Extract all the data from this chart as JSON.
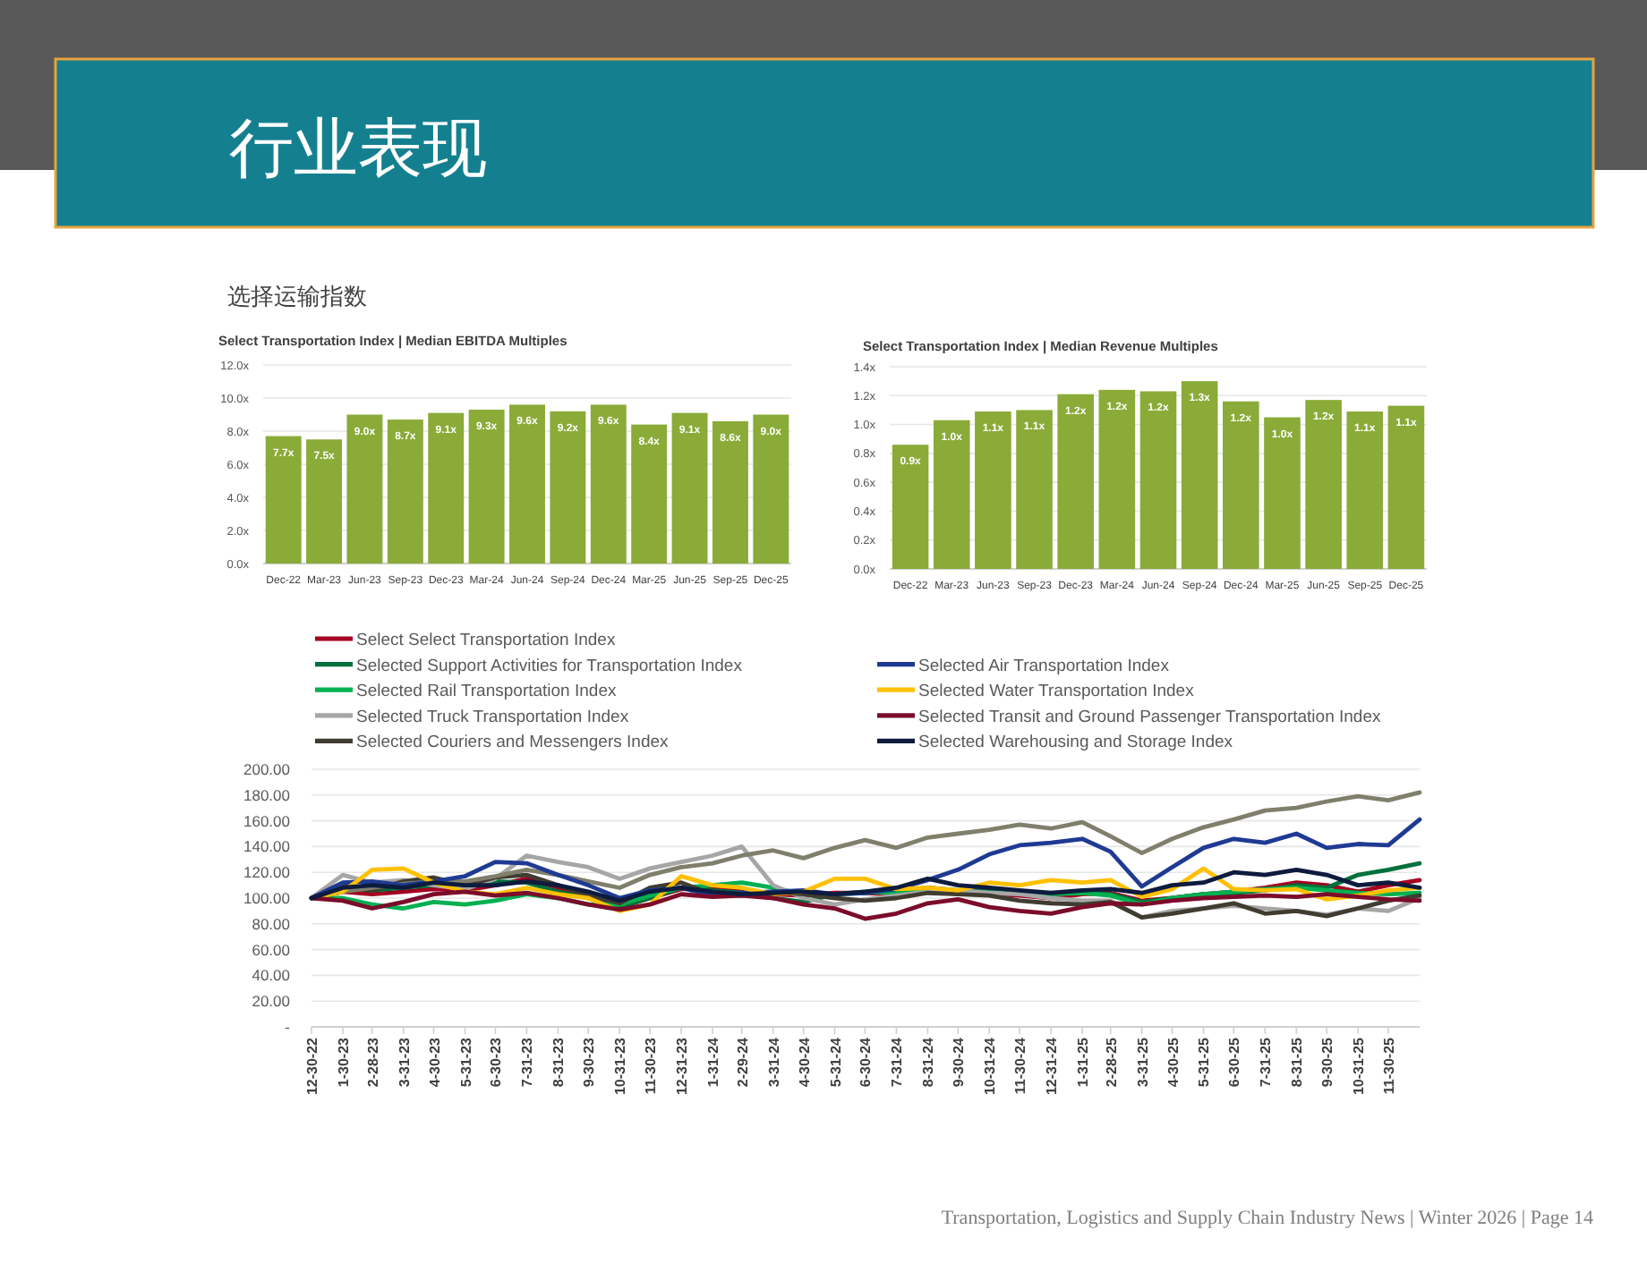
{
  "chart_data": [
    {
      "type": "other",
      "title": "行业表现",
      "subtitle": "选择运输指数",
      "annotations": [
        "Transportation, Logistics and Supply Chain Industry News | Winter 2026 | Page 14"
      ]
    },
    {
      "type": "bar",
      "title": "Select Transportation Index | Median EBITDA Multiples",
      "categories": [
        "Dec-22",
        "Mar-23",
        "Jun-23",
        "Sep-23",
        "Dec-23",
        "Mar-24",
        "Jun-24",
        "Sep-24",
        "Dec-24",
        "Mar-25",
        "Jun-25",
        "Sep-25",
        "Dec-25"
      ],
      "values": [
        7.7,
        7.5,
        9.0,
        8.7,
        9.1,
        9.3,
        9.6,
        9.2,
        9.6,
        8.4,
        9.1,
        8.6,
        9.0
      ],
      "value_labels": [
        "7.7x",
        "7.5x",
        "9.0x",
        "8.7x",
        "9.1x",
        "9.3x",
        "9.6x",
        "9.2x",
        "9.6x",
        "8.4x",
        "9.1x",
        "8.6x",
        "9.0x"
      ],
      "color": "#8aab38",
      "ylim": [
        0,
        12
      ],
      "yticks": [
        {
          "value": 0,
          "label": "0.0x"
        },
        {
          "value": 2,
          "label": "2.0x"
        },
        {
          "value": 4,
          "label": "4.0x"
        },
        {
          "value": 6,
          "label": "6.0x"
        },
        {
          "value": 8,
          "label": "8.0x"
        },
        {
          "value": 10,
          "label": "10.0x"
        },
        {
          "value": 12,
          "label": "12.0x"
        }
      ],
      "grid": "y"
    },
    {
      "type": "bar",
      "title": "Select Transportation Index | Median Revenue Multiples",
      "categories": [
        "Dec-22",
        "Mar-23",
        "Jun-23",
        "Sep-23",
        "Dec-23",
        "Mar-24",
        "Jun-24",
        "Sep-24",
        "Dec-24",
        "Mar-25",
        "Jun-25",
        "Sep-25",
        "Dec-25"
      ],
      "values": [
        0.86,
        1.03,
        1.09,
        1.1,
        1.21,
        1.24,
        1.23,
        1.3,
        1.16,
        1.05,
        1.17,
        1.09,
        1.13
      ],
      "value_labels": [
        "0.9x",
        "1.0x",
        "1.1x",
        "1.1x",
        "1.2x",
        "1.2x",
        "1.2x",
        "1.3x",
        "1.2x",
        "1.0x",
        "1.2x",
        "1.1x",
        "1.1x"
      ],
      "color": "#8aab38",
      "ylim": [
        0,
        1.4
      ],
      "yticks": [
        {
          "value": 0,
          "label": "0.0x"
        },
        {
          "value": 0.2,
          "label": "0.2x"
        },
        {
          "value": 0.4,
          "label": "0.4x"
        },
        {
          "value": 0.6,
          "label": "0.6x"
        },
        {
          "value": 0.8,
          "label": "0.8x"
        },
        {
          "value": 1.0,
          "label": "1.0x"
        },
        {
          "value": 1.2,
          "label": "1.2x"
        },
        {
          "value": 1.4,
          "label": "1.4x"
        }
      ],
      "grid": "y"
    },
    {
      "type": "line",
      "x": [
        "2022-12-30",
        "2023-01-30",
        "2023-02-28",
        "2023-03-31",
        "2023-04-30",
        "2023-05-31",
        "2023-06-30",
        "2023-07-31",
        "2023-08-31",
        "2023-09-30",
        "2023-10-31",
        "2023-11-30",
        "2023-12-31",
        "2024-01-31",
        "2024-02-29",
        "2024-03-31",
        "2024-04-30",
        "2024-05-31",
        "2024-06-30",
        "2024-07-31",
        "2024-08-31",
        "2024-09-30",
        "2024-10-31",
        "2024-11-30",
        "2024-12-31",
        "2025-01-31",
        "2025-02-28",
        "2025-03-31",
        "2025-04-30",
        "2025-05-31",
        "2025-06-30",
        "2025-07-31",
        "2025-08-31",
        "2025-09-30",
        "2025-10-31",
        "2025-11-30",
        "2025-12-31"
      ],
      "xlim": [
        "2022-12-30",
        "2025-12-31"
      ],
      "xticks": [
        {
          "value": "2022-12-30",
          "label": "12-30-22"
        },
        {
          "value": "2023-01-30",
          "label": "1-30-23"
        },
        {
          "value": "2023-02-28",
          "label": "2-28-23"
        },
        {
          "value": "2023-03-31",
          "label": "3-31-23"
        },
        {
          "value": "2023-04-30",
          "label": "4-30-23"
        },
        {
          "value": "2023-05-31",
          "label": "5-31-23"
        },
        {
          "value": "2023-06-30",
          "label": "6-30-23"
        },
        {
          "value": "2023-07-31",
          "label": "7-31-23"
        },
        {
          "value": "2023-08-31",
          "label": "8-31-23"
        },
        {
          "value": "2023-09-30",
          "label": "9-30-23"
        },
        {
          "value": "2023-10-31",
          "label": "10-31-23"
        },
        {
          "value": "2023-11-30",
          "label": "11-30-23"
        },
        {
          "value": "2023-12-31",
          "label": "12-31-23"
        },
        {
          "value": "2024-01-31",
          "label": "1-31-24"
        },
        {
          "value": "2024-02-29",
          "label": "2-29-24"
        },
        {
          "value": "2024-03-31",
          "label": "3-31-24"
        },
        {
          "value": "2024-04-30",
          "label": "4-30-24"
        },
        {
          "value": "2024-05-31",
          "label": "5-31-24"
        },
        {
          "value": "2024-06-30",
          "label": "6-30-24"
        },
        {
          "value": "2024-07-31",
          "label": "7-31-24"
        },
        {
          "value": "2024-08-31",
          "label": "8-31-24"
        },
        {
          "value": "2024-09-30",
          "label": "9-30-24"
        },
        {
          "value": "2024-10-31",
          "label": "10-31-24"
        },
        {
          "value": "2024-11-30",
          "label": "11-30-24"
        },
        {
          "value": "2024-12-31",
          "label": "12-31-24"
        },
        {
          "value": "2025-01-31",
          "label": "1-31-25"
        },
        {
          "value": "2025-02-28",
          "label": "2-28-25"
        },
        {
          "value": "2025-03-31",
          "label": "3-31-25"
        },
        {
          "value": "2025-04-30",
          "label": "4-30-25"
        },
        {
          "value": "2025-05-31",
          "label": "5-31-25"
        },
        {
          "value": "2025-06-30",
          "label": "6-30-25"
        },
        {
          "value": "2025-07-31",
          "label": "7-31-25"
        },
        {
          "value": "2025-08-31",
          "label": "8-31-25"
        },
        {
          "value": "2025-09-30",
          "label": "9-30-25"
        },
        {
          "value": "2025-10-31",
          "label": "10-31-25"
        },
        {
          "value": "2025-11-30",
          "label": "11-30-25"
        }
      ],
      "ylim": [
        0,
        200
      ],
      "yticks": [
        {
          "value": 0,
          "label": "-"
        },
        {
          "value": 20,
          "label": "20.00"
        },
        {
          "value": 40,
          "label": "40.00"
        },
        {
          "value": 60,
          "label": "60.00"
        },
        {
          "value": 80,
          "label": "80.00"
        },
        {
          "value": 100,
          "label": "100.00"
        },
        {
          "value": 120,
          "label": "120.00"
        },
        {
          "value": 140,
          "label": "140.00"
        },
        {
          "value": 160,
          "label": "160.00"
        },
        {
          "value": 180,
          "label": "180.00"
        },
        {
          "value": 200,
          "label": "200.00"
        }
      ],
      "grid": "y",
      "legend": "top",
      "line_style": "solid",
      "series": [
        {
          "name": "Select Select Transportation Index",
          "color": "#a50021",
          "values": [
            100,
            105,
            103,
            105,
            107,
            106,
            110,
            115,
            108,
            100,
            93,
            100,
            107,
            108,
            105,
            103,
            102,
            104,
            104,
            103,
            108,
            104,
            103,
            102,
            100,
            103,
            104,
            98,
            100,
            103,
            105,
            108,
            112,
            110,
            105,
            110,
            114
          ]
        },
        {
          "name": "Selected Support Activities for Transportation Index",
          "color": "#00703c",
          "values": [
            100,
            108,
            106,
            108,
            110,
            108,
            113,
            112,
            105,
            100,
            93,
            100,
            108,
            106,
            104,
            100,
            97,
            103,
            104,
            106,
            108,
            106,
            107,
            104,
            103,
            105,
            103,
            97,
            100,
            103,
            104,
            106,
            110,
            108,
            118,
            122,
            127
          ]
        },
        {
          "name": "Selected Rail Transportation Index",
          "color": "#00b050",
          "values": [
            100,
            100,
            95,
            92,
            97,
            95,
            98,
            103,
            100,
            95,
            95,
            102,
            108,
            110,
            112,
            108,
            103,
            103,
            105,
            104,
            106,
            105,
            104,
            105,
            103,
            104,
            102,
            95,
            100,
            103,
            105,
            107,
            108,
            106,
            104,
            103,
            104
          ]
        },
        {
          "name": "Selected Truck Transportation Index",
          "color": "#a6a6a6",
          "values": [
            100,
            118,
            112,
            114,
            110,
            107,
            115,
            133,
            128,
            124,
            115,
            123,
            128,
            133,
            140,
            110,
            100,
            95,
            99,
            102,
            105,
            106,
            104,
            103,
            100,
            98,
            98,
            85,
            90,
            92,
            94,
            92,
            90,
            87,
            92,
            90,
            100
          ]
        },
        {
          "name": "Selected Couriers and Messengers Index",
          "color": "#403c30",
          "values": [
            100,
            110,
            106,
            113,
            116,
            110,
            116,
            118,
            110,
            102,
            96,
            108,
            112,
            103,
            102,
            105,
            103,
            100,
            98,
            100,
            104,
            103,
            102,
            98,
            96,
            95,
            97,
            85,
            88,
            92,
            96,
            88,
            90,
            86,
            92,
            98,
            102
          ]
        },
        {
          "color": "#7f7f6b",
          "values": [
            100,
            105,
            108,
            111,
            113,
            113,
            117,
            122,
            118,
            113,
            108,
            118,
            124,
            127,
            133,
            137,
            131,
            139,
            145,
            139,
            147,
            150,
            153,
            157,
            154,
            159,
            148,
            135,
            146,
            155,
            161,
            168,
            170,
            175,
            179,
            176,
            182
          ]
        },
        {
          "name": "Selected Air Transportation Index",
          "color": "#1f3a93",
          "values": [
            100,
            112,
            113,
            110,
            113,
            117,
            128,
            127,
            118,
            110,
            100,
            106,
            108,
            102,
            104,
            105,
            106,
            103,
            104,
            107,
            114,
            122,
            134,
            141,
            143,
            146,
            136,
            109,
            124,
            139,
            146,
            143,
            150,
            139,
            142,
            141,
            161
          ]
        },
        {
          "name": "Selected Water Transportation Index",
          "color": "#ffc000",
          "values": [
            100,
            105,
            122,
            123,
            112,
            105,
            103,
            108,
            103,
            100,
            90,
            95,
            117,
            110,
            108,
            103,
            105,
            115,
            115,
            107,
            108,
            106,
            112,
            110,
            114,
            112,
            114,
            101,
            107,
            123,
            107,
            106,
            107,
            99,
            102,
            106,
            108
          ]
        },
        {
          "name": "Selected Transit and Ground Passenger Transportation Index",
          "color": "#7b0c2a",
          "values": [
            100,
            98,
            92,
            97,
            103,
            105,
            102,
            104,
            100,
            95,
            91,
            95,
            103,
            101,
            102,
            100,
            95,
            92,
            84,
            88,
            96,
            99,
            93,
            90,
            88,
            93,
            96,
            95,
            98,
            100,
            101,
            102,
            101,
            103,
            101,
            99,
            98
          ]
        },
        {
          "name": "Selected Warehousing and Storage Index",
          "color": "#0d1b3e",
          "values": [
            100,
            108,
            110,
            108,
            112,
            110,
            110,
            113,
            110,
            105,
            98,
            105,
            108,
            105,
            103,
            104,
            105,
            103,
            105,
            108,
            115,
            110,
            108,
            106,
            104,
            106,
            107,
            104,
            110,
            112,
            120,
            118,
            122,
            118,
            110,
            112,
            108
          ]
        }
      ]
    }
  ]
}
